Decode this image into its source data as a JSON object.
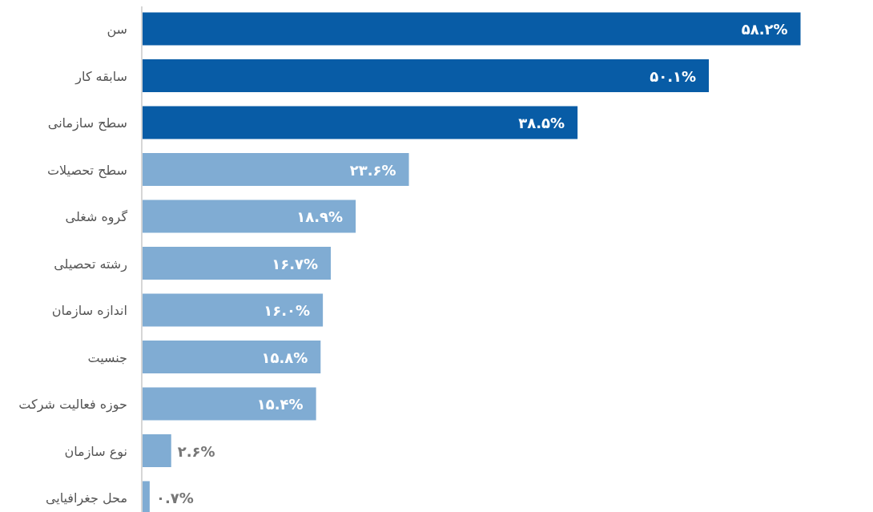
{
  "chart_data": {
    "type": "bar",
    "orientation": "horizontal",
    "tick_labels": "y",
    "categories": [
      "سن",
      "سابقه کار",
      "سطح سازمانی",
      "سطح تحصیلات",
      "گروه شغلی",
      "رشته تحصیلی",
      "اندازه سازمان",
      "جنسیت",
      "حوزه فعالیت شرکت",
      "نوع سازمان",
      "محل جغرافیایی"
    ],
    "values": [
      58.2,
      50.1,
      38.5,
      23.6,
      18.9,
      16.7,
      16.0,
      15.8,
      15.4,
      2.6,
      0.7
    ],
    "colors": [
      "#085ca6",
      "#085ca6",
      "#085ca6",
      "#80acd3",
      "#80acd3",
      "#80acd3",
      "#80acd3",
      "#80acd3",
      "#80acd3",
      "#80acd3",
      "#80acd3"
    ],
    "value_labels": [
      "۵۸.۲%",
      "۵۰.۱%",
      "۳۸.۵%",
      "۲۳.۶%",
      "۱۸.۹%",
      "۱۶.۷%",
      "۱۶.۰%",
      "۱۵.۸%",
      "۱۵.۴%",
      "۲.۶%",
      "۰.۷%"
    ]
  }
}
